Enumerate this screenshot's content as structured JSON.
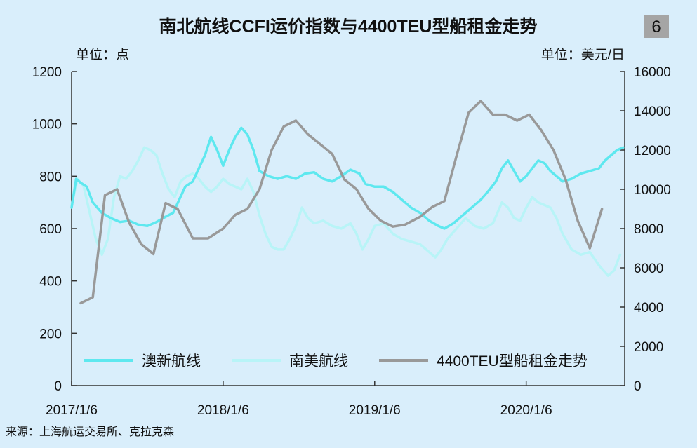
{
  "chart_data": {
    "type": "line",
    "title": "南北航线CCFI运价指数与4400TEU型船租金走势",
    "badge": "6",
    "ylabel_left": "单位：点",
    "ylabel_right": "单位：美元/日",
    "source": "来源：上海航运交易所、克拉克森",
    "x_ticks": [
      "2017/1/6",
      "2018/1/6",
      "2019/1/6",
      "2020/1/6"
    ],
    "y_left_ticks": [
      "0",
      "200",
      "400",
      "600",
      "800",
      "1000",
      "1200"
    ],
    "y_right_ticks": [
      "0",
      "2000",
      "4000",
      "6000",
      "8000",
      "10000",
      "12000",
      "14000",
      "16000"
    ],
    "ylim_left": [
      0,
      1200
    ],
    "ylim_right": [
      0,
      16000
    ],
    "x_range": [
      2017.0,
      2020.65
    ],
    "legend_position": "bottom",
    "grid": false,
    "series": [
      {
        "name": "澳新航线",
        "axis": "left",
        "color": "#5ee8ef",
        "points": [
          [
            2017.0,
            680
          ],
          [
            2017.03,
            790
          ],
          [
            2017.06,
            775
          ],
          [
            2017.1,
            760
          ],
          [
            2017.14,
            700
          ],
          [
            2017.2,
            660
          ],
          [
            2017.26,
            640
          ],
          [
            2017.32,
            625
          ],
          [
            2017.38,
            630
          ],
          [
            2017.44,
            615
          ],
          [
            2017.5,
            610
          ],
          [
            2017.56,
            625
          ],
          [
            2017.62,
            645
          ],
          [
            2017.67,
            660
          ],
          [
            2017.71,
            710
          ],
          [
            2017.75,
            760
          ],
          [
            2017.8,
            780
          ],
          [
            2017.84,
            830
          ],
          [
            2017.88,
            880
          ],
          [
            2017.92,
            950
          ],
          [
            2017.96,
            900
          ],
          [
            2018.0,
            840
          ],
          [
            2018.04,
            900
          ],
          [
            2018.08,
            950
          ],
          [
            2018.12,
            985
          ],
          [
            2018.16,
            960
          ],
          [
            2018.2,
            900
          ],
          [
            2018.24,
            820
          ],
          [
            2018.3,
            800
          ],
          [
            2018.36,
            790
          ],
          [
            2018.42,
            800
          ],
          [
            2018.48,
            790
          ],
          [
            2018.54,
            810
          ],
          [
            2018.6,
            815
          ],
          [
            2018.66,
            790
          ],
          [
            2018.72,
            780
          ],
          [
            2018.78,
            800
          ],
          [
            2018.84,
            825
          ],
          [
            2018.9,
            810
          ],
          [
            2018.94,
            770
          ],
          [
            2019.0,
            760
          ],
          [
            2019.06,
            760
          ],
          [
            2019.12,
            740
          ],
          [
            2019.18,
            710
          ],
          [
            2019.24,
            680
          ],
          [
            2019.3,
            660
          ],
          [
            2019.36,
            630
          ],
          [
            2019.42,
            610
          ],
          [
            2019.46,
            600
          ],
          [
            2019.52,
            620
          ],
          [
            2019.58,
            650
          ],
          [
            2019.64,
            680
          ],
          [
            2019.7,
            710
          ],
          [
            2019.76,
            750
          ],
          [
            2019.8,
            780
          ],
          [
            2019.84,
            830
          ],
          [
            2019.88,
            860
          ],
          [
            2019.92,
            820
          ],
          [
            2019.96,
            780
          ],
          [
            2020.0,
            800
          ],
          [
            2020.04,
            830
          ],
          [
            2020.08,
            860
          ],
          [
            2020.12,
            850
          ],
          [
            2020.16,
            820
          ],
          [
            2020.2,
            800
          ],
          [
            2020.24,
            780
          ],
          [
            2020.3,
            790
          ],
          [
            2020.36,
            810
          ],
          [
            2020.42,
            820
          ],
          [
            2020.48,
            830
          ],
          [
            2020.52,
            860
          ],
          [
            2020.56,
            880
          ],
          [
            2020.6,
            900
          ],
          [
            2020.64,
            910
          ]
        ]
      },
      {
        "name": "南美航线",
        "axis": "left",
        "color": "#b8f4f7",
        "points": [
          [
            2017.0,
            690
          ],
          [
            2017.04,
            790
          ],
          [
            2017.08,
            760
          ],
          [
            2017.12,
            660
          ],
          [
            2017.16,
            560
          ],
          [
            2017.2,
            500
          ],
          [
            2017.24,
            560
          ],
          [
            2017.28,
            720
          ],
          [
            2017.32,
            800
          ],
          [
            2017.36,
            790
          ],
          [
            2017.4,
            820
          ],
          [
            2017.44,
            860
          ],
          [
            2017.48,
            910
          ],
          [
            2017.52,
            900
          ],
          [
            2017.56,
            880
          ],
          [
            2017.6,
            810
          ],
          [
            2017.64,
            750
          ],
          [
            2017.68,
            720
          ],
          [
            2017.72,
            780
          ],
          [
            2017.76,
            800
          ],
          [
            2017.8,
            810
          ],
          [
            2017.84,
            790
          ],
          [
            2017.88,
            760
          ],
          [
            2017.92,
            740
          ],
          [
            2017.96,
            760
          ],
          [
            2018.0,
            790
          ],
          [
            2018.04,
            770
          ],
          [
            2018.08,
            760
          ],
          [
            2018.12,
            750
          ],
          [
            2018.16,
            790
          ],
          [
            2018.2,
            740
          ],
          [
            2018.24,
            650
          ],
          [
            2018.28,
            580
          ],
          [
            2018.32,
            530
          ],
          [
            2018.36,
            520
          ],
          [
            2018.4,
            520
          ],
          [
            2018.44,
            560
          ],
          [
            2018.48,
            610
          ],
          [
            2018.52,
            680
          ],
          [
            2018.56,
            640
          ],
          [
            2018.6,
            620
          ],
          [
            2018.66,
            630
          ],
          [
            2018.72,
            610
          ],
          [
            2018.78,
            600
          ],
          [
            2018.84,
            620
          ],
          [
            2018.88,
            580
          ],
          [
            2018.92,
            520
          ],
          [
            2018.96,
            560
          ],
          [
            2019.0,
            610
          ],
          [
            2019.06,
            620
          ],
          [
            2019.12,
            580
          ],
          [
            2019.18,
            560
          ],
          [
            2019.24,
            550
          ],
          [
            2019.3,
            540
          ],
          [
            2019.36,
            510
          ],
          [
            2019.4,
            490
          ],
          [
            2019.44,
            520
          ],
          [
            2019.48,
            560
          ],
          [
            2019.54,
            600
          ],
          [
            2019.6,
            640
          ],
          [
            2019.66,
            610
          ],
          [
            2019.72,
            600
          ],
          [
            2019.78,
            620
          ],
          [
            2019.84,
            700
          ],
          [
            2019.88,
            680
          ],
          [
            2019.92,
            640
          ],
          [
            2019.96,
            630
          ],
          [
            2020.0,
            680
          ],
          [
            2020.04,
            720
          ],
          [
            2020.08,
            700
          ],
          [
            2020.12,
            690
          ],
          [
            2020.16,
            680
          ],
          [
            2020.2,
            640
          ],
          [
            2020.24,
            580
          ],
          [
            2020.3,
            520
          ],
          [
            2020.36,
            500
          ],
          [
            2020.42,
            510
          ],
          [
            2020.48,
            460
          ],
          [
            2020.54,
            420
          ],
          [
            2020.58,
            440
          ],
          [
            2020.62,
            500
          ]
        ]
      },
      {
        "name": "4400TEU型船租金走势",
        "axis": "right",
        "color": "#999999",
        "points": [
          [
            2017.06,
            4200
          ],
          [
            2017.14,
            4500
          ],
          [
            2017.22,
            9700
          ],
          [
            2017.3,
            10000
          ],
          [
            2017.38,
            8300
          ],
          [
            2017.46,
            7200
          ],
          [
            2017.54,
            6700
          ],
          [
            2017.62,
            9300
          ],
          [
            2017.7,
            9000
          ],
          [
            2017.8,
            7500
          ],
          [
            2017.9,
            7500
          ],
          [
            2018.0,
            8000
          ],
          [
            2018.08,
            8700
          ],
          [
            2018.16,
            9000
          ],
          [
            2018.24,
            10000
          ],
          [
            2018.32,
            12000
          ],
          [
            2018.4,
            13200
          ],
          [
            2018.48,
            13500
          ],
          [
            2018.56,
            12800
          ],
          [
            2018.64,
            12300
          ],
          [
            2018.72,
            11800
          ],
          [
            2018.8,
            10500
          ],
          [
            2018.88,
            10000
          ],
          [
            2018.96,
            9000
          ],
          [
            2019.04,
            8400
          ],
          [
            2019.12,
            8100
          ],
          [
            2019.2,
            8200
          ],
          [
            2019.3,
            8600
          ],
          [
            2019.38,
            9100
          ],
          [
            2019.46,
            9400
          ],
          [
            2019.54,
            11700
          ],
          [
            2019.62,
            13900
          ],
          [
            2019.7,
            14500
          ],
          [
            2019.78,
            13800
          ],
          [
            2019.86,
            13800
          ],
          [
            2019.94,
            13500
          ],
          [
            2020.02,
            13800
          ],
          [
            2020.1,
            13000
          ],
          [
            2020.18,
            12000
          ],
          [
            2020.26,
            10500
          ],
          [
            2020.34,
            8400
          ],
          [
            2020.42,
            7000
          ],
          [
            2020.5,
            9000
          ]
        ]
      }
    ]
  }
}
